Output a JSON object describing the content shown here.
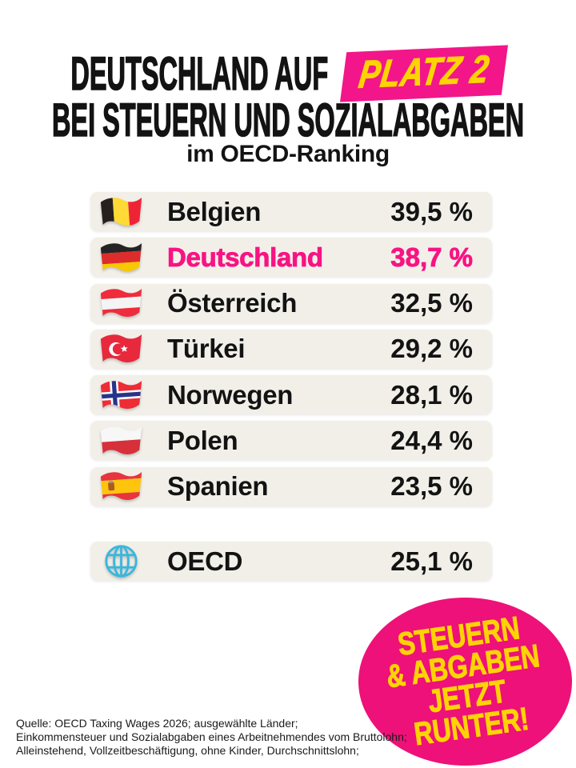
{
  "header": {
    "title_prefix": "DEUTSCHLAND AUF",
    "title_badge": "PLATZ 2",
    "title_line2": "BEI STEUERN UND SOZIALABGABEN",
    "subtitle": "im OECD-Ranking"
  },
  "chart_data": {
    "type": "table",
    "title": "Deutschland auf Platz 2 bei Steuern und Sozialabgaben im OECD-Ranking",
    "unit": "% des Bruttolohns",
    "categories": [
      "Belgien",
      "Deutschland",
      "Österreich",
      "Türkei",
      "Norwegen",
      "Polen",
      "Spanien"
    ],
    "values": [
      39.5,
      38.7,
      32.5,
      29.2,
      28.1,
      24.4,
      23.5
    ],
    "reference": {
      "label": "OECD",
      "value": 25.1
    },
    "highlight": "Deutschland"
  },
  "ranking": {
    "rows": [
      {
        "country": "Belgien",
        "value": "39,5 %",
        "flag": "belgium",
        "highlight": false
      },
      {
        "country": "Deutschland",
        "value": "38,7 %",
        "flag": "germany",
        "highlight": true
      },
      {
        "country": "Österreich",
        "value": "32,5 %",
        "flag": "austria",
        "highlight": false
      },
      {
        "country": "Türkei",
        "value": "29,2 %",
        "flag": "turkey",
        "highlight": false
      },
      {
        "country": "Norwegen",
        "value": "28,1 %",
        "flag": "norway",
        "highlight": false
      },
      {
        "country": "Polen",
        "value": "24,4 %",
        "flag": "poland",
        "highlight": false
      },
      {
        "country": "Spanien",
        "value": "23,5 %",
        "flag": "spain",
        "highlight": false
      }
    ],
    "summary": {
      "label": "OECD",
      "value": "25,1 %",
      "icon": "globe-icon"
    }
  },
  "badge": {
    "lines": [
      "STEUERN",
      "& ABGABEN",
      "JETZT",
      "RUNTER!"
    ]
  },
  "footer": {
    "lines": [
      "Quelle: OECD Taxing Wages 2026; ausgewählte Länder;",
      "Einkommensteuer und Sozialabgaben eines Arbeitnehmendes vom Bruttolohn;",
      "Alleinstehend, Vollzeitbeschäftigung, ohne Kinder, Durchschnittslohn;"
    ]
  },
  "colors": {
    "box_pink": "#f2168a",
    "badge_pink": "#ee1179",
    "highlight_pink": "#f81383",
    "accent_yellow": "#fdd306",
    "row_bg": "#f2efe9",
    "text": "#131313"
  }
}
